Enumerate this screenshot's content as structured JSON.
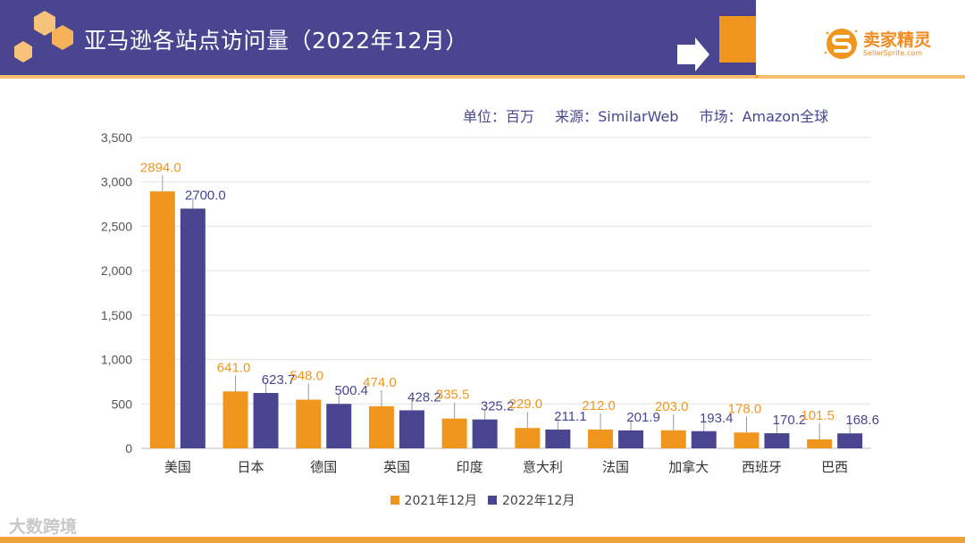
{
  "header": {
    "title": "亚马逊各站点访问量（2022年12月）",
    "logo_cn": "卖家精灵",
    "logo_en": "SellerSprite.com"
  },
  "meta": {
    "unit": "单位：百万",
    "source": "来源：SimilarWeb",
    "market": "市场：Amazon全球"
  },
  "colors": {
    "header_bg": "#4a4590",
    "accent_orange": "#f0961f",
    "series_2022": "#4a4590"
  },
  "watermark": "大数跨境",
  "chart_data": {
    "type": "bar",
    "categories": [
      "美国",
      "日本",
      "德国",
      "英国",
      "印度",
      "意大利",
      "法国",
      "加拿大",
      "西班牙",
      "巴西"
    ],
    "series": [
      {
        "name": "2021年12月",
        "color": "#f0961f",
        "values": [
          2894.0,
          641.0,
          548.0,
          474.0,
          335.5,
          229.0,
          212.0,
          203.0,
          178.0,
          101.5
        ]
      },
      {
        "name": "2022年12月",
        "color": "#4a4590",
        "values": [
          2700.0,
          623.7,
          500.4,
          428.2,
          325.2,
          211.1,
          201.9,
          193.4,
          170.2,
          168.6
        ]
      }
    ],
    "yticks": [
      "0",
      "500",
      "1,000",
      "1,500",
      "2,000",
      "2,500",
      "3,000",
      "3,500"
    ],
    "ylim": [
      0,
      3500
    ],
    "grid": true,
    "legend_position": "bottom"
  }
}
